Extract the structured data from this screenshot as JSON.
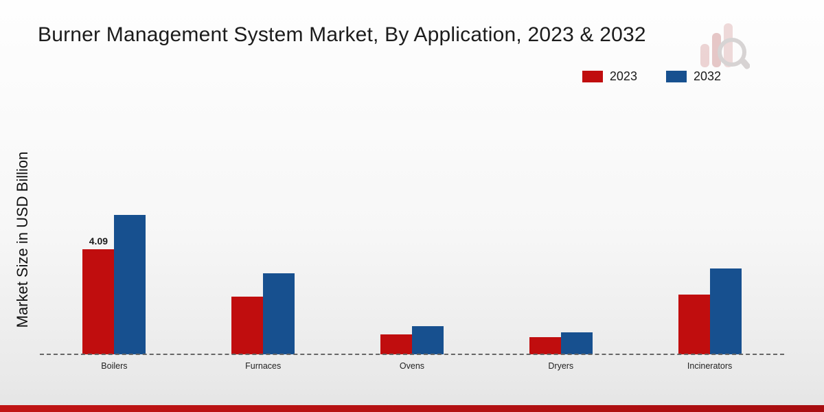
{
  "title": "Burner Management System Market, By Application, 2023 & 2032",
  "ylabel": "Market Size in USD Billion",
  "chart_data": {
    "type": "bar",
    "categories": [
      "Boilers",
      "Furnaces",
      "Ovens",
      "Dryers",
      "Incinerators"
    ],
    "series": [
      {
        "name": "2023",
        "color": "#c00d0e",
        "values": [
          4.09,
          2.25,
          0.79,
          0.66,
          2.33
        ]
      },
      {
        "name": "2032",
        "color": "#17508f",
        "values": [
          5.45,
          3.17,
          1.1,
          0.87,
          3.36
        ]
      }
    ],
    "title": "Burner Management System Market, By Application, 2023 & 2032",
    "xlabel": "",
    "ylabel": "Market Size in USD Billion",
    "ylim": [
      0,
      9
    ],
    "grid": false,
    "legend_position": "top-right",
    "baseline_style": "dashed",
    "annotations": [
      {
        "series": "2023",
        "category": "Boilers",
        "text": "4.09"
      }
    ]
  }
}
